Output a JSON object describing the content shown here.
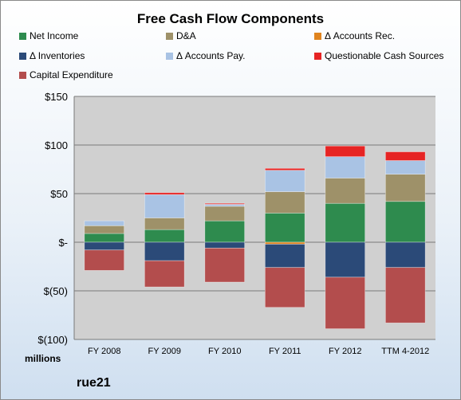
{
  "chart_data": {
    "type": "bar",
    "stacked": true,
    "title": "Free Cash Flow Components",
    "units_label": "millions",
    "company": "rue21",
    "categories": [
      "FY 2008",
      "FY 2009",
      "FY 2010",
      "FY 2011",
      "FY 2012",
      "TTM 4-2012"
    ],
    "ylim": [
      -100,
      150
    ],
    "yticks": [
      -100,
      -50,
      0,
      50,
      100,
      150
    ],
    "ytick_labels": [
      "$(100)",
      "$(50)",
      "$-",
      "$50",
      "$100",
      "$150"
    ],
    "grid": true,
    "legend_position": "top",
    "series": [
      {
        "name": "Net Income",
        "color": "#2e8b4e",
        "values": [
          9,
          13,
          22,
          30,
          40,
          42
        ]
      },
      {
        "name": "D&A",
        "color": "#9e9169",
        "values": [
          8,
          12,
          15,
          22,
          26,
          28
        ]
      },
      {
        "name": "Δ Accounts Rec.",
        "color": "#e0841f",
        "values": [
          0,
          0,
          0,
          -2,
          0,
          0
        ]
      },
      {
        "name": "Δ Inventories",
        "color": "#2b4a78",
        "values": [
          -8,
          -19,
          -6,
          -24,
          -36,
          -26
        ]
      },
      {
        "name": "Δ Accounts Pay.",
        "color": "#a9c3e4",
        "values": [
          5,
          24,
          2,
          22,
          22,
          14
        ]
      },
      {
        "name": "Questionable Cash Sources",
        "color": "#e62424",
        "values": [
          0,
          2,
          1,
          2,
          11,
          9
        ]
      },
      {
        "name": "Capital Expenditure",
        "color": "#b34d4d",
        "values": [
          -21,
          -27,
          -35,
          -41,
          -53,
          -57
        ]
      }
    ]
  }
}
